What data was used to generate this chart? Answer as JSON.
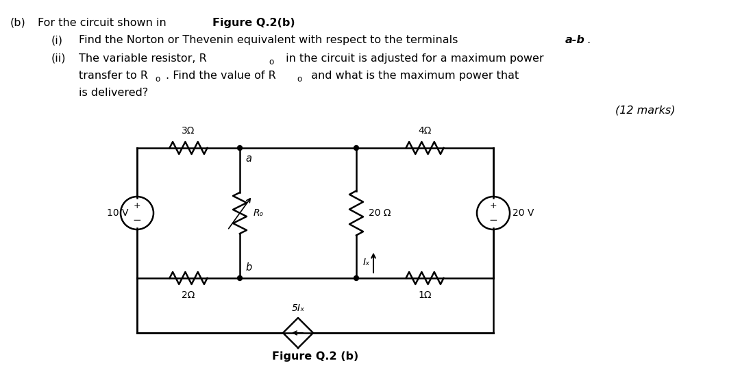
{
  "title_text": "(b)   For the circuit shown in ",
  "title_bold": "Figure Q.2(b)",
  "item_i": "(i)",
  "text_i": "Find the Norton or Thevenin equivalent with respect to the terminals ",
  "text_i_bold": "a-b",
  "item_ii": "(ii)",
  "text_ii_1": "The variable resistor, R",
  "text_ii_sub": "o",
  "text_ii_2": " in the circuit is adjusted for a maximum power",
  "text_ii_3": "transfer to R",
  "text_ii_3sub": "o",
  "text_ii_3end": ". Find the value of R",
  "text_ii_4sub": "o",
  "text_ii_4end": " and what is the maximum power that",
  "text_ii_5": "is delivered?",
  "marks": "(12 marks)",
  "fig_label": "Figure Q.2 (b)",
  "bg_color": "#ffffff",
  "circuit_color": "#000000",
  "resistor_3ohm": "3Ω",
  "resistor_4ohm": "4Ω",
  "resistor_2ohm": "2Ω",
  "resistor_1ohm": "1Ω",
  "resistor_20ohm": "20 Ω",
  "resistor_Ro": "Rₒ",
  "source_10v": "10 V",
  "source_20v": "20 V",
  "source_5Ix": "5Iₓ",
  "label_a": "a",
  "label_b": "b",
  "label_Ix": "Iₓ"
}
